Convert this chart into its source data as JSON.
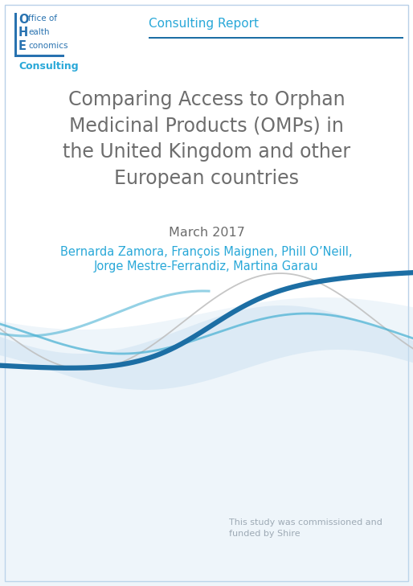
{
  "bg_color": "#ffffff",
  "inner_bg_color": "#dce9f5",
  "border_color": "#b8d0e8",
  "title_text": "Comparing Access to Orphan\nMedicinal Products (OMPs) in\nthe United Kingdom and other\nEuropean countries",
  "date_text": "March 2017",
  "authors_line1": "Bernarda Zamora, François Maignen, Phill O’Neill,",
  "authors_line2": "Jorge Mestre-Ferrandiz, Martina Garau",
  "consulting_report_text": "Consulting Report",
  "footer_text": "This study was commissioned and\nfunded by Shire",
  "ohe_consulting": "Consulting",
  "ohe_color": "#2872b0",
  "consulting_text_color": "#29a8d8",
  "title_color": "#6d6d6d",
  "date_color": "#6d6d6d",
  "authors_color": "#29a8d8",
  "footer_color": "#9eaab5",
  "wave_dark_blue": "#1c6ea4",
  "wave_medium_blue": "#4db3d4",
  "wave_light_fill": "#c8dff0",
  "wave_gray": "#c0c0c0",
  "line_color": "#1c6ea4"
}
